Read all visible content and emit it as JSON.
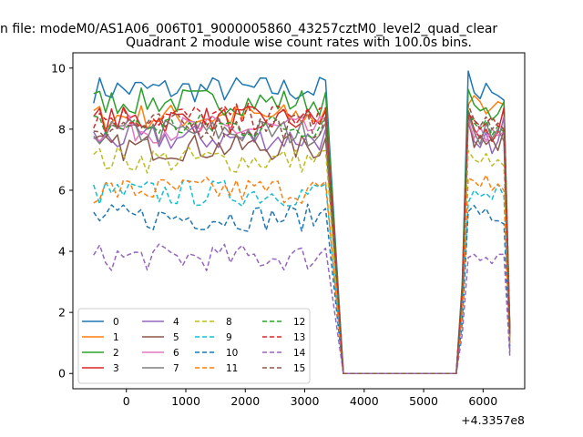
{
  "chart_data": {
    "type": "line",
    "suptitle": "n file: modeM0/AS1A06_006T01_9000005860_43257cztM0_level2_quad_clear",
    "title": "Quadrant 2 module wise count rates with 100.0s bins.",
    "xlabel": "",
    "ylabel": "",
    "x_offset_label": "+4.3357e8",
    "xlim": [
      -900,
      6700
    ],
    "ylim": [
      -0.5,
      10.5
    ],
    "x_ticks": [
      0,
      1000,
      2000,
      3000,
      4000,
      5000,
      6000
    ],
    "x_tick_labels": [
      "0",
      "1000",
      "2000",
      "3000",
      "4000",
      "5000",
      "6000"
    ],
    "y_ticks": [
      0,
      2,
      4,
      6,
      8,
      10
    ],
    "y_tick_labels": [
      "0",
      "2",
      "4",
      "6",
      "8",
      "10"
    ],
    "grid": false,
    "legend_placement": "lower-left",
    "legend_columns": 4,
    "x_segment1": {
      "start": -550,
      "step": 100,
      "count": 40
    },
    "gap": {
      "x": [
        3650,
        5550
      ],
      "value": 0
    },
    "x_segment2": {
      "start": 5550,
      "step": 100,
      "count": 10
    },
    "series": [
      {
        "name": "0",
        "color": "#1f77b4",
        "linestyle": "solid",
        "mean1": 9.3,
        "values2": [
          0,
          3.0,
          9.9,
          9.2,
          9.0,
          9.5,
          9.2,
          9.1,
          8.95,
          1.5
        ]
      },
      {
        "name": "1",
        "color": "#ff7f0e",
        "linestyle": "solid",
        "mean1": 8.4,
        "values2": [
          0,
          2.8,
          8.8,
          9.1,
          8.9,
          8.5,
          8.7,
          8.9,
          8.8,
          1.4
        ]
      },
      {
        "name": "2",
        "color": "#2ca02c",
        "linestyle": "solid",
        "mean1": 8.9,
        "values2": [
          0,
          2.9,
          9.3,
          8.8,
          8.6,
          8.7,
          8.3,
          8.5,
          8.9,
          1.45
        ]
      },
      {
        "name": "3",
        "color": "#d62728",
        "linestyle": "solid",
        "mean1": 8.3,
        "values2": [
          0,
          2.7,
          8.6,
          8.0,
          7.7,
          8.0,
          7.6,
          7.9,
          8.7,
          1.3
        ]
      },
      {
        "name": "4",
        "color": "#9467bd",
        "linestyle": "solid",
        "mean1": 7.7,
        "values2": [
          0,
          2.5,
          8.2,
          7.6,
          7.4,
          7.9,
          7.2,
          7.6,
          8.4,
          0.7
        ]
      },
      {
        "name": "5",
        "color": "#8c564b",
        "linestyle": "solid",
        "mean1": 7.4,
        "values2": [
          0,
          2.4,
          8.4,
          7.4,
          7.8,
          7.5,
          7.7,
          7.3,
          8.0,
          1.2
        ]
      },
      {
        "name": "6",
        "color": "#e377c2",
        "linestyle": "solid",
        "mean1": 8.0,
        "values2": [
          0,
          2.6,
          8.3,
          7.7,
          8.1,
          7.6,
          8.0,
          7.8,
          7.9,
          1.3
        ]
      },
      {
        "name": "7",
        "color": "#7f7f7f",
        "linestyle": "solid",
        "mean1": 7.9,
        "values2": [
          0,
          2.6,
          8.5,
          7.9,
          7.5,
          8.2,
          7.7,
          8.0,
          7.6,
          1.3
        ]
      },
      {
        "name": "8",
        "color": "#bcbd22",
        "linestyle": "dashed",
        "mean1": 7.0,
        "values2": [
          0,
          2.3,
          7.3,
          7.0,
          6.9,
          7.2,
          6.8,
          7.0,
          6.8,
          1.1
        ]
      },
      {
        "name": "9",
        "color": "#17becf",
        "linestyle": "dashed",
        "mean1": 5.9,
        "values2": [
          0,
          2.0,
          5.6,
          6.0,
          5.8,
          5.9,
          5.7,
          6.2,
          5.8,
          1.0
        ]
      },
      {
        "name": "10",
        "color": "#1f77b4",
        "linestyle": "dashed",
        "mean1": 5.1,
        "values2": [
          0,
          1.7,
          5.3,
          5.5,
          5.2,
          5.4,
          5.0,
          5.0,
          4.9,
          0.9
        ]
      },
      {
        "name": "11",
        "color": "#ff7f0e",
        "linestyle": "dashed",
        "mean1": 6.0,
        "values2": [
          0,
          2.0,
          6.4,
          6.3,
          6.1,
          6.5,
          6.0,
          6.2,
          6.0,
          1.0
        ]
      },
      {
        "name": "12",
        "color": "#2ca02c",
        "linestyle": "dashed",
        "mean1": 8.1,
        "values2": [
          0,
          2.7,
          8.6,
          8.2,
          8.0,
          8.3,
          7.8,
          8.1,
          7.9,
          1.3
        ]
      },
      {
        "name": "13",
        "color": "#d62728",
        "linestyle": "dashed",
        "mean1": 8.4,
        "values2": [
          0,
          2.8,
          8.5,
          8.3,
          8.0,
          8.2,
          8.4,
          8.1,
          8.0,
          1.3
        ]
      },
      {
        "name": "14",
        "color": "#9467bd",
        "linestyle": "dashed",
        "mean1": 3.8,
        "values2": [
          0,
          1.3,
          3.8,
          3.9,
          3.7,
          3.8,
          3.6,
          3.9,
          3.9,
          0.55
        ]
      },
      {
        "name": "15",
        "color": "#8c564b",
        "linestyle": "dashed",
        "mean1": 8.1,
        "values2": [
          0,
          2.7,
          8.8,
          8.3,
          8.1,
          8.4,
          8.0,
          8.2,
          8.0,
          1.3
        ]
      }
    ]
  }
}
